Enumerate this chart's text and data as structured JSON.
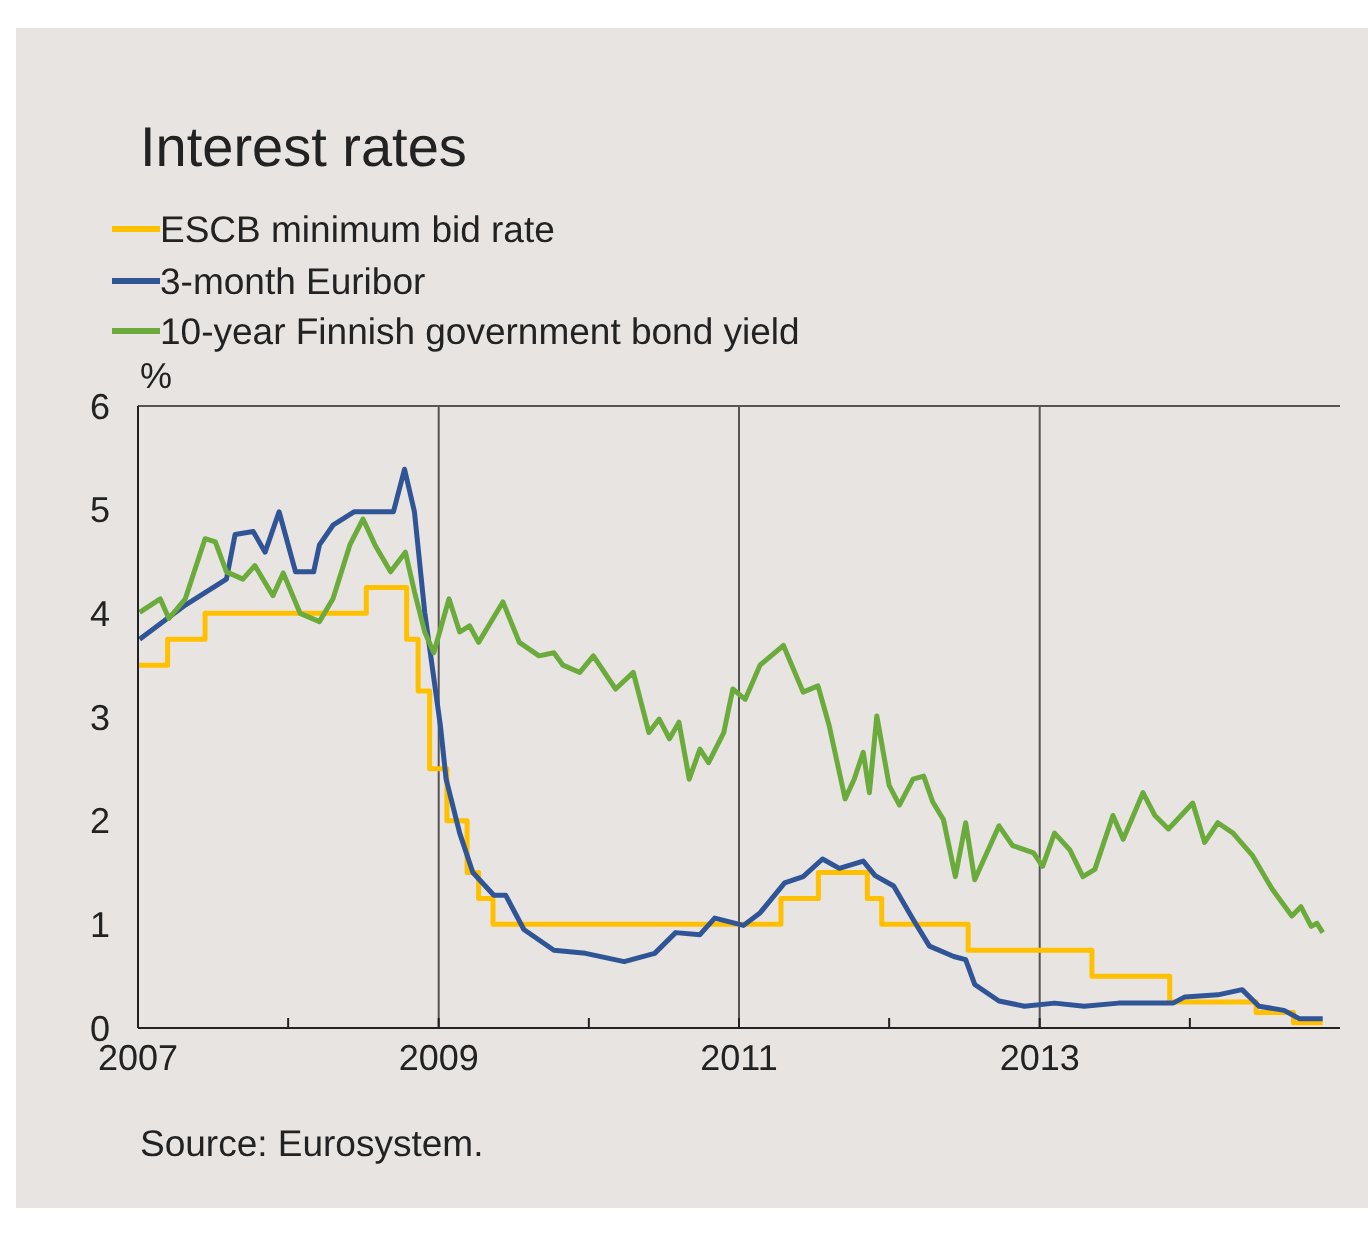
{
  "chart_data": {
    "type": "line",
    "title": "Interest rates",
    "ylabel": "%",
    "annotations": [
      "Source: Eurosystem."
    ],
    "xlim": [
      "2007-01-01",
      "2015-01-01"
    ],
    "xticks": [
      {
        "value": "2007",
        "label": "2007"
      },
      {
        "value": "2008",
        "label": null
      },
      {
        "value": "2009",
        "label": "2009"
      },
      {
        "value": "2010",
        "label": null
      },
      {
        "value": "2011",
        "label": "2011"
      },
      {
        "value": "2012",
        "label": null
      },
      {
        "value": "2013",
        "label": "2013"
      },
      {
        "value": "2014",
        "label": null
      }
    ],
    "ylim": [
      0,
      6
    ],
    "yticks": [
      0,
      1,
      2,
      3,
      4,
      5,
      6
    ],
    "grid": true,
    "legend": "top left",
    "marker": "none",
    "line_style": "solid",
    "series": [
      {
        "name": "ESCB minimum bid rate",
        "type": "step",
        "color": "#ffc000",
        "x": [
          "2007-01-01",
          "2007-03-14",
          "2007-06-13",
          "2008-07-09",
          "2008-10-15",
          "2008-11-12",
          "2008-12-10",
          "2009-01-21",
          "2009-03-11",
          "2009-04-08",
          "2009-05-13",
          "2011-04-13",
          "2011-07-13",
          "2011-11-09",
          "2011-12-14",
          "2012-07-11",
          "2013-05-08",
          "2013-11-13",
          "2014-06-11",
          "2014-09-10",
          "2014-11-20"
        ],
        "values": [
          3.5,
          3.75,
          4.0,
          4.25,
          3.75,
          3.25,
          2.5,
          2.0,
          1.5,
          1.25,
          1.0,
          1.25,
          1.5,
          1.25,
          1.0,
          0.75,
          0.5,
          0.25,
          0.15,
          0.05,
          0.05
        ]
      },
      {
        "name": "3-month Euribor",
        "type": "line",
        "color": "#2f5597",
        "x": [
          "2007-01-05",
          "2007-04-26",
          "2007-08-04",
          "2007-08-25",
          "2007-10-08",
          "2007-11-06",
          "2007-12-10",
          "2008-01-19",
          "2008-03-03",
          "2008-03-17",
          "2008-04-19",
          "2008-06-10",
          "2008-09-13",
          "2008-10-10",
          "2008-11-03",
          "2008-11-28",
          "2009-01-05",
          "2009-01-19",
          "2009-02-21",
          "2009-03-25",
          "2009-05-15",
          "2009-06-13",
          "2009-07-27",
          "2009-10-08",
          "2009-12-24",
          "2010-03-28",
          "2010-06-10",
          "2010-07-31",
          "2010-09-28",
          "2010-11-03",
          "2011-01-12",
          "2011-02-21",
          "2011-04-22",
          "2011-06-06",
          "2011-07-23",
          "2011-09-02",
          "2011-10-30",
          "2011-11-28",
          "2012-01-12",
          "2012-02-28",
          "2012-04-08",
          "2012-06-06",
          "2012-07-05",
          "2012-07-27",
          "2012-09-24",
          "2012-11-25",
          "2013-02-06",
          "2013-04-19",
          "2013-07-12",
          "2013-11-21",
          "2013-12-20",
          "2014-03-10",
          "2014-05-08",
          "2014-06-18",
          "2014-08-18",
          "2014-09-24",
          "2014-11-20"
        ],
        "values": [
          3.75,
          4.08,
          4.33,
          4.76,
          4.79,
          4.59,
          4.98,
          4.4,
          4.4,
          4.66,
          4.85,
          4.98,
          4.98,
          5.39,
          4.98,
          4.01,
          2.92,
          2.4,
          1.88,
          1.5,
          1.28,
          1.28,
          0.95,
          0.75,
          0.72,
          0.64,
          0.72,
          0.92,
          0.9,
          1.06,
          0.99,
          1.11,
          1.4,
          1.46,
          1.63,
          1.54,
          1.61,
          1.47,
          1.37,
          1.05,
          0.79,
          0.69,
          0.66,
          0.42,
          0.26,
          0.21,
          0.24,
          0.21,
          0.24,
          0.24,
          0.3,
          0.32,
          0.37,
          0.21,
          0.17,
          0.09,
          0.09
        ]
      },
      {
        "name": "10-year Finnish government bond yield",
        "type": "line",
        "color": "#6aab3c",
        "x": [
          "2007-01-05",
          "2007-02-24",
          "2007-03-17",
          "2007-04-26",
          "2007-06-13",
          "2007-07-08",
          "2007-08-04",
          "2007-09-13",
          "2007-10-12",
          "2007-11-25",
          "2007-12-20",
          "2008-01-30",
          "2008-03-17",
          "2008-04-19",
          "2008-05-30",
          "2008-07-01",
          "2008-07-30",
          "2008-09-06",
          "2008-10-12",
          "2008-11-03",
          "2008-11-28",
          "2008-12-20",
          "2009-01-26",
          "2009-02-21",
          "2009-03-17",
          "2009-04-08",
          "2009-06-06",
          "2009-07-16",
          "2009-09-02",
          "2009-10-08",
          "2009-10-30",
          "2009-12-10",
          "2010-01-12",
          "2010-03-07",
          "2010-04-19",
          "2010-05-27",
          "2010-06-21",
          "2010-07-16",
          "2010-08-08",
          "2010-09-02",
          "2010-09-28",
          "2010-10-19",
          "2010-11-25",
          "2010-12-17",
          "2011-01-16",
          "2011-02-21",
          "2011-04-19",
          "2011-06-06",
          "2011-07-12",
          "2011-08-08",
          "2011-09-16",
          "2011-10-08",
          "2011-10-30",
          "2011-11-14",
          "2011-12-02",
          "2012-01-01",
          "2012-01-26",
          "2012-02-28",
          "2012-03-25",
          "2012-04-16",
          "2012-05-12",
          "2012-06-10",
          "2012-07-05",
          "2012-07-27",
          "2012-08-22",
          "2012-09-24",
          "2012-10-27",
          "2012-12-17",
          "2013-01-08",
          "2013-02-06",
          "2013-03-15",
          "2013-04-16",
          "2013-05-15",
          "2013-06-28",
          "2013-07-23",
          "2013-09-09",
          "2013-10-08",
          "2013-11-10",
          "2014-01-08",
          "2014-02-06",
          "2014-03-10",
          "2014-04-16",
          "2014-06-03",
          "2014-07-20",
          "2014-09-06",
          "2014-09-28",
          "2014-10-23",
          "2014-11-06",
          "2014-11-20"
        ],
        "values": [
          4.01,
          4.14,
          3.95,
          4.14,
          4.72,
          4.69,
          4.4,
          4.33,
          4.46,
          4.17,
          4.39,
          4.0,
          3.92,
          4.14,
          4.66,
          4.91,
          4.66,
          4.4,
          4.59,
          4.21,
          3.82,
          3.62,
          4.14,
          3.82,
          3.88,
          3.72,
          4.11,
          3.72,
          3.59,
          3.62,
          3.5,
          3.43,
          3.59,
          3.27,
          3.43,
          2.85,
          2.98,
          2.79,
          2.95,
          2.4,
          2.69,
          2.56,
          2.85,
          3.27,
          3.17,
          3.5,
          3.69,
          3.24,
          3.3,
          2.92,
          2.21,
          2.4,
          2.66,
          2.27,
          3.01,
          2.34,
          2.15,
          2.4,
          2.43,
          2.18,
          2.01,
          1.46,
          1.98,
          1.43,
          1.66,
          1.95,
          1.76,
          1.69,
          1.56,
          1.88,
          1.72,
          1.46,
          1.53,
          2.05,
          1.82,
          2.27,
          2.05,
          1.92,
          2.17,
          1.79,
          1.98,
          1.88,
          1.66,
          1.34,
          1.08,
          1.17,
          0.98,
          1.01,
          0.92
        ]
      }
    ]
  }
}
